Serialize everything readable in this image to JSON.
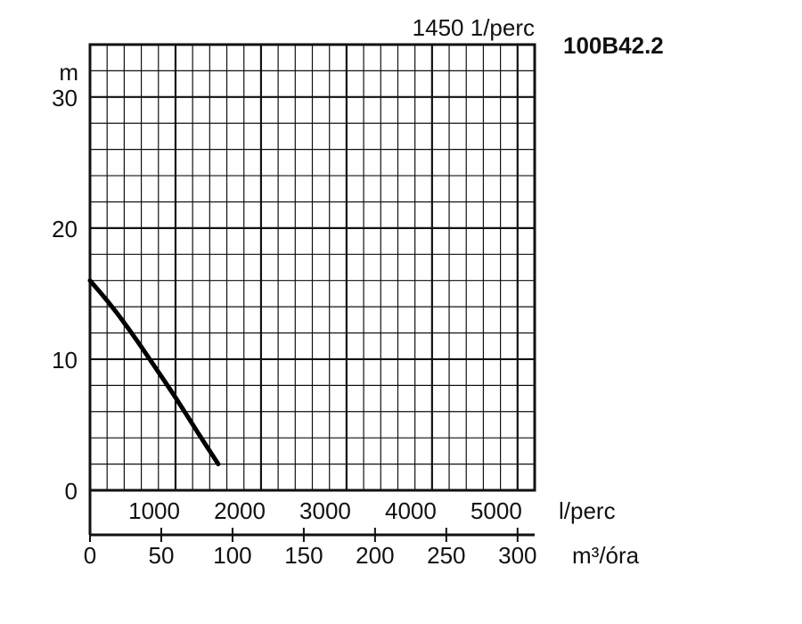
{
  "chart_data": {
    "type": "line",
    "title": "1450 1/perc",
    "model": "100B42.2",
    "ylabel": "m",
    "ylim": [
      0,
      34
    ],
    "yticks": [
      0,
      10,
      20,
      30
    ],
    "grid": true,
    "x_primary": {
      "unit": "l/perc",
      "lim": [
        0,
        5200
      ],
      "ticks": [
        1000,
        2000,
        3000,
        4000,
        5000
      ]
    },
    "x_secondary": {
      "unit": "m³/óra",
      "lim": [
        0,
        312
      ],
      "ticks": [
        0,
        50,
        100,
        150,
        200,
        250,
        300
      ]
    },
    "series": [
      {
        "x": [
          0,
          250,
          500,
          750,
          1000,
          1250,
          1500
        ],
        "y": [
          16.0,
          14.1,
          11.9,
          9.5,
          7.1,
          4.5,
          2.0
        ]
      }
    ]
  }
}
